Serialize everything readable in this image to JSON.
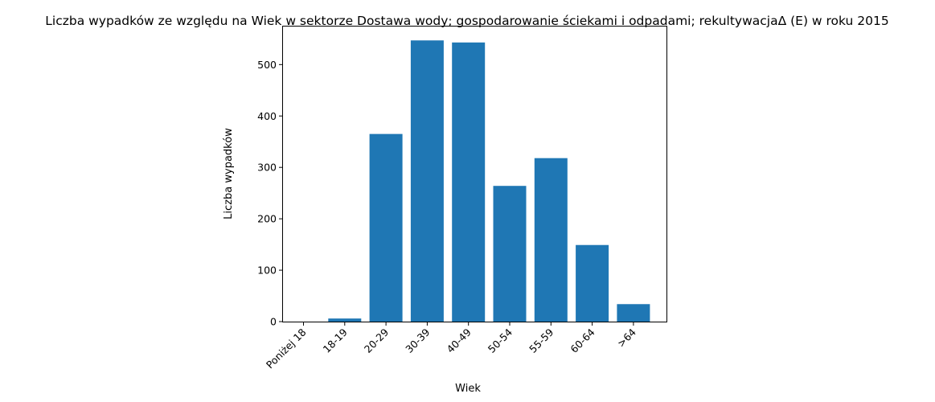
{
  "chart_data": {
    "type": "bar",
    "title": "Liczba wypadków ze względu na Wiek w sektorze Dostawa wody; gospodarowanie ściekami i odpadami;  rekultywacjaΔ  (E) w roku 2015",
    "xlabel": "Wiek",
    "ylabel": "Liczba wypadków",
    "categories": [
      "Poniżej 18",
      "18-19",
      "20-29",
      "30-39",
      "40-49",
      "50-54",
      "55-59",
      "60-64",
      ">64"
    ],
    "values": [
      0,
      6,
      365,
      547,
      543,
      264,
      318,
      149,
      34
    ],
    "ylim": [
      0,
      574
    ],
    "yticks": [
      0,
      100,
      200,
      300,
      400,
      500
    ],
    "bar_color": "#1f77b4",
    "grid": false,
    "legend": "none"
  }
}
